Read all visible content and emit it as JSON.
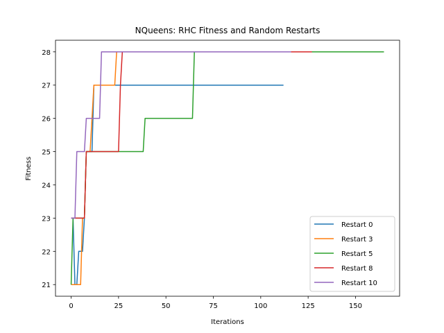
{
  "chart_data": {
    "type": "line",
    "title": "NQueens: RHC Fitness and Random Restarts",
    "xlabel": "Iterations",
    "ylabel": "Fitness",
    "xlim": [
      -8.25,
      173.25
    ],
    "ylim": [
      20.65,
      28.35
    ],
    "xticks": [
      0,
      25,
      50,
      75,
      100,
      125,
      150
    ],
    "yticks": [
      21,
      22,
      23,
      24,
      25,
      26,
      27,
      28
    ],
    "grid": false,
    "legend_position": "lower right",
    "series": [
      {
        "name": "Restart 0",
        "color": "#1f77b4",
        "points": [
          [
            0,
            23
          ],
          [
            1,
            23
          ],
          [
            2,
            21
          ],
          [
            3,
            21
          ],
          [
            4,
            22
          ],
          [
            5,
            22
          ],
          [
            6,
            22
          ],
          [
            7,
            23
          ],
          [
            8,
            25
          ],
          [
            11,
            25
          ],
          [
            12,
            27
          ],
          [
            112,
            27
          ]
        ]
      },
      {
        "name": "Restart 3",
        "color": "#ff7f0e",
        "points": [
          [
            0,
            21
          ],
          [
            5,
            21
          ],
          [
            6,
            23
          ],
          [
            7,
            23
          ],
          [
            8,
            25
          ],
          [
            10,
            25
          ],
          [
            12,
            27
          ],
          [
            23,
            27
          ],
          [
            24,
            28
          ],
          [
            127,
            28
          ]
        ]
      },
      {
        "name": "Restart 5",
        "color": "#2ca02c",
        "points": [
          [
            0,
            21
          ],
          [
            1,
            23
          ],
          [
            7,
            23
          ],
          [
            8,
            25
          ],
          [
            38,
            25
          ],
          [
            39,
            26
          ],
          [
            64,
            26
          ],
          [
            65,
            28
          ],
          [
            165,
            28
          ]
        ]
      },
      {
        "name": "Restart 8",
        "color": "#d62728",
        "points": [
          [
            0,
            23
          ],
          [
            7,
            23
          ],
          [
            8,
            25
          ],
          [
            25,
            25
          ],
          [
            26,
            27
          ],
          [
            27,
            28
          ],
          [
            127,
            28
          ]
        ]
      },
      {
        "name": "Restart 10",
        "color": "#9467bd",
        "points": [
          [
            0,
            23
          ],
          [
            2,
            23
          ],
          [
            3,
            25
          ],
          [
            7,
            25
          ],
          [
            8,
            26
          ],
          [
            15,
            26
          ],
          [
            16,
            28
          ],
          [
            116,
            28
          ]
        ]
      }
    ]
  }
}
